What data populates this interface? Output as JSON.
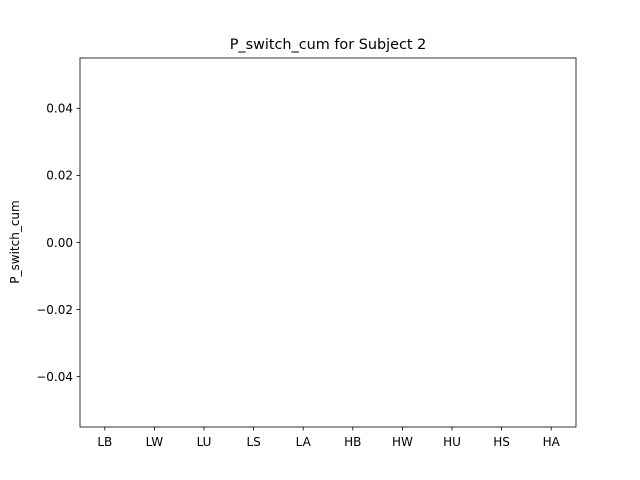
{
  "chart_data": {
    "type": "bar",
    "title": "P_switch_cum for Subject 2",
    "xlabel": "",
    "ylabel": "P_switch_cum",
    "categories": [
      "LB",
      "LW",
      "LU",
      "LS",
      "LA",
      "HB",
      "HW",
      "HU",
      "HS",
      "HA"
    ],
    "values": [
      0,
      0,
      0,
      0,
      0,
      0,
      0,
      0,
      0,
      0
    ],
    "ylim": [
      -0.055,
      0.055
    ],
    "yticks": [
      -0.04,
      -0.02,
      0.0,
      0.02,
      0.04
    ],
    "ytick_labels": [
      "−0.04",
      "−0.02",
      "0.00",
      "0.02",
      "0.04"
    ],
    "grid": false,
    "legend": "none",
    "colors": {
      "axes": "#000000",
      "background": "#ffffff",
      "bar": "#1f77b4"
    }
  }
}
